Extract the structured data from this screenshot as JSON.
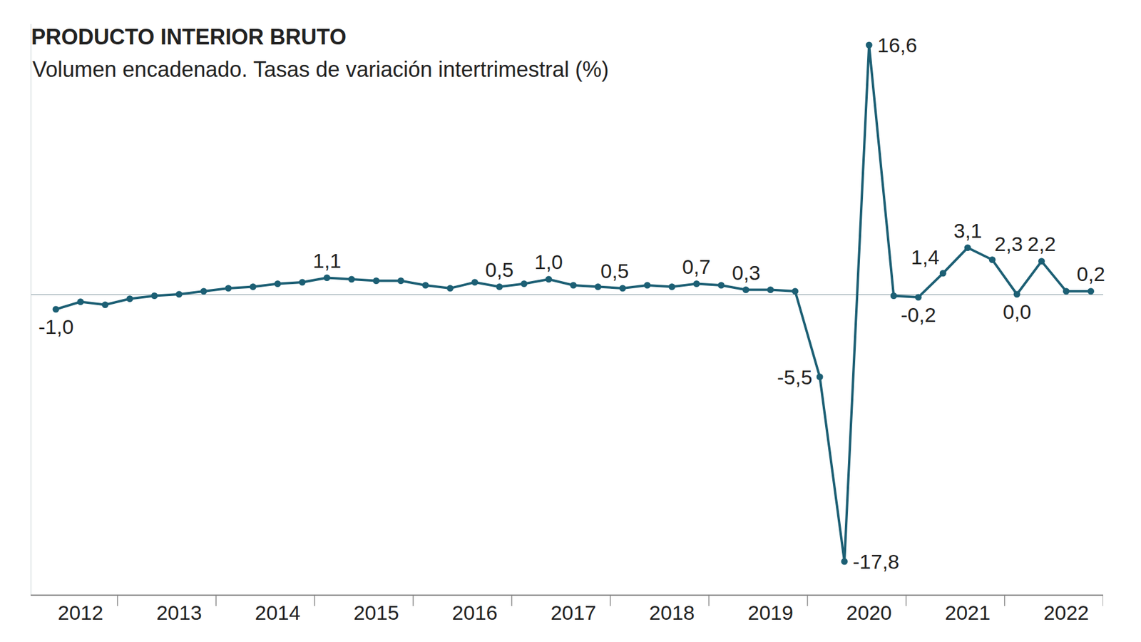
{
  "chart_data": {
    "type": "line",
    "title": "PRODUCTO INTERIOR BRUTO",
    "subtitle": "Volumen encadenado. Tasas de variación intertrimestral (%)",
    "categories": [
      null,
      "2012",
      null,
      null,
      null,
      "2013",
      null,
      null,
      null,
      "2014",
      null,
      null,
      null,
      "2015",
      null,
      null,
      null,
      "2016",
      null,
      null,
      null,
      "2017",
      null,
      null,
      null,
      "2018",
      null,
      null,
      null,
      "2019",
      null,
      null,
      null,
      "2020",
      null,
      null,
      null,
      "2021",
      null,
      null,
      null,
      "2022",
      null
    ],
    "values": [
      -1.0,
      -0.5,
      -0.7,
      -0.3,
      -0.1,
      0.0,
      0.2,
      0.4,
      0.5,
      0.7,
      0.8,
      1.1,
      1.0,
      0.9,
      0.9,
      0.6,
      0.4,
      0.8,
      0.5,
      0.7,
      1.0,
      0.6,
      0.5,
      0.4,
      0.6,
      0.5,
      0.7,
      0.6,
      0.3,
      0.3,
      0.2,
      -5.5,
      -17.8,
      16.6,
      -0.1,
      -0.2,
      1.4,
      3.1,
      2.3,
      0.0,
      2.2,
      0.2,
      0.2
    ],
    "value_labels": [
      "-1,0",
      null,
      null,
      null,
      null,
      null,
      null,
      null,
      null,
      null,
      null,
      "1,1",
      null,
      null,
      null,
      null,
      null,
      null,
      "0,5",
      null,
      "1,0",
      null,
      "0,5",
      null,
      null,
      null,
      "0,7",
      null,
      "0,3",
      null,
      null,
      "-5,5",
      "-17,8",
      "16,6",
      null,
      "-0,2",
      "1,4",
      "3,1",
      "2,3",
      "0,0",
      "2,2",
      null,
      "0,2"
    ],
    "color": "#1c5f74",
    "marker": "circle",
    "line_style": "solid",
    "data_labels": true,
    "ylim": [
      -20,
      18
    ],
    "yticks": [
      0
    ],
    "grid": true,
    "tick_labels": "x"
  }
}
